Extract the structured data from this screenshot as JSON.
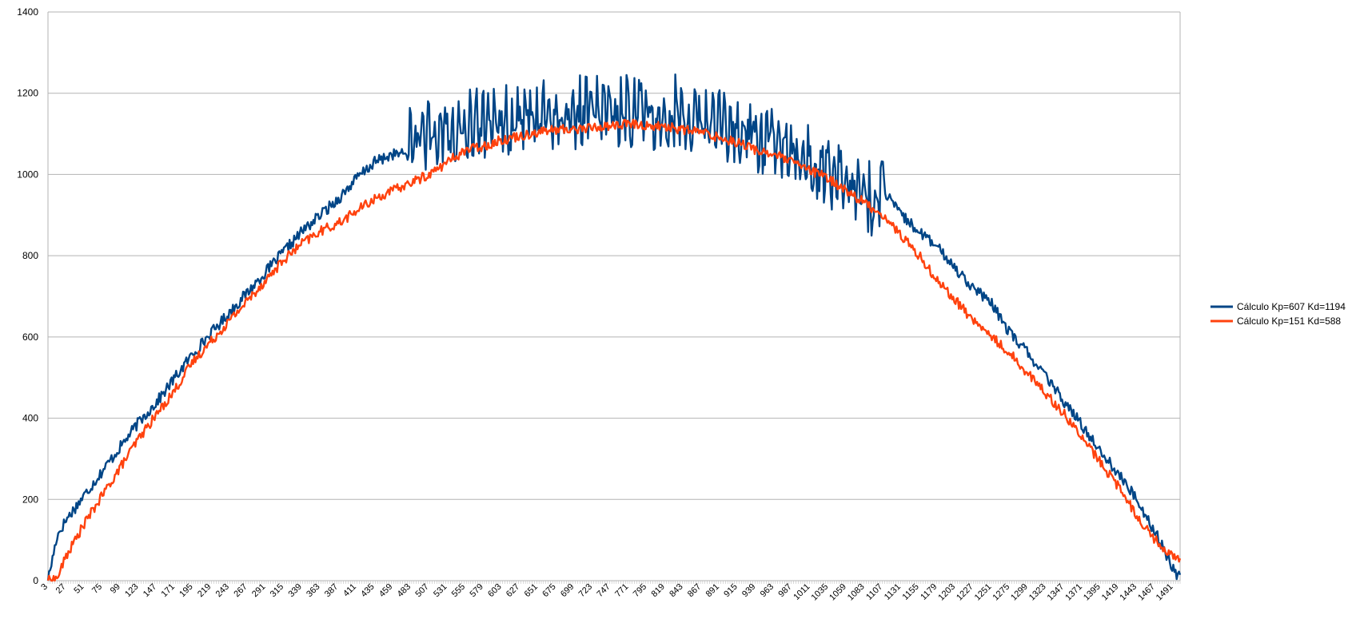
{
  "chart_data": {
    "type": "line",
    "title": "",
    "xlabel": "",
    "ylabel": "",
    "ylim": [
      0,
      1400
    ],
    "y_ticks": [
      0,
      200,
      400,
      600,
      800,
      1000,
      1200,
      1400
    ],
    "xlim": [
      3,
      1500
    ],
    "x_tick_labels": [
      3,
      27,
      51,
      75,
      99,
      123,
      147,
      171,
      195,
      219,
      243,
      267,
      291,
      315,
      339,
      363,
      387,
      411,
      435,
      459,
      483,
      507,
      531,
      555,
      579,
      603,
      627,
      651,
      675,
      699,
      723,
      747,
      771,
      795,
      819,
      843,
      867,
      891,
      915,
      939,
      963,
      987,
      1011,
      1035,
      1059,
      1083,
      1107,
      1131,
      1155,
      1179,
      1203,
      1227,
      1251,
      1275,
      1299,
      1323,
      1347,
      1371,
      1395,
      1419,
      1443,
      1467,
      1491
    ],
    "grid": "horizontal",
    "legend_position": "right",
    "series": [
      {
        "name": "Cálculo Kp=607 Kd=1194",
        "color": "#004586",
        "x": [
          3,
          15,
          27,
          51,
          75,
          99,
          123,
          147,
          171,
          195,
          219,
          243,
          267,
          291,
          315,
          339,
          363,
          387,
          411,
          435,
          459,
          483,
          507,
          531,
          555,
          579,
          603,
          627,
          651,
          675,
          699,
          723,
          747,
          771,
          795,
          819,
          843,
          867,
          891,
          915,
          939,
          963,
          987,
          1011,
          1035,
          1059,
          1083,
          1100,
          1107,
          1131,
          1155,
          1179,
          1203,
          1227,
          1251,
          1275,
          1299,
          1323,
          1347,
          1371,
          1395,
          1419,
          1443,
          1467,
          1491,
          1500
        ],
        "y": [
          0,
          110,
          150,
          210,
          270,
          330,
          390,
          440,
          500,
          560,
          610,
          660,
          710,
          760,
          810,
          860,
          900,
          940,
          990,
          1030,
          1050,
          1050,
          1060,
          1070,
          1080,
          1090,
          1100,
          1105,
          1110,
          1112,
          1115,
          1118,
          1120,
          1118,
          1115,
          1112,
          1110,
          1100,
          1090,
          1080,
          1060,
          1050,
          1030,
          1000,
          970,
          950,
          920,
          880,
          960,
          900,
          860,
          820,
          770,
          720,
          680,
          610,
          560,
          500,
          440,
          380,
          320,
          260,
          200,
          120,
          30,
          5
        ]
      },
      {
        "name": "Cálculo Kp=151 Kd=588",
        "color": "#ff420e",
        "x": [
          3,
          15,
          27,
          51,
          75,
          99,
          123,
          147,
          171,
          195,
          219,
          243,
          267,
          291,
          315,
          339,
          363,
          387,
          411,
          435,
          459,
          483,
          507,
          531,
          555,
          579,
          603,
          627,
          651,
          675,
          699,
          723,
          747,
          771,
          795,
          819,
          843,
          867,
          891,
          915,
          939,
          963,
          987,
          1011,
          1035,
          1059,
          1083,
          1107,
          1131,
          1155,
          1179,
          1203,
          1227,
          1251,
          1275,
          1299,
          1323,
          1347,
          1371,
          1395,
          1419,
          1443,
          1467,
          1491,
          1500
        ],
        "y": [
          0,
          5,
          60,
          140,
          210,
          280,
          350,
          410,
          470,
          540,
          590,
          640,
          690,
          740,
          790,
          830,
          860,
          880,
          910,
          940,
          960,
          980,
          1000,
          1030,
          1060,
          1070,
          1085,
          1095,
          1105,
          1110,
          1112,
          1115,
          1120,
          1125,
          1120,
          1118,
          1110,
          1105,
          1090,
          1080,
          1060,
          1050,
          1030,
          1010,
          990,
          960,
          930,
          900,
          850,
          800,
          740,
          690,
          640,
          600,
          560,
          510,
          460,
          410,
          350,
          290,
          230,
          160,
          100,
          60,
          50
        ]
      }
    ]
  }
}
